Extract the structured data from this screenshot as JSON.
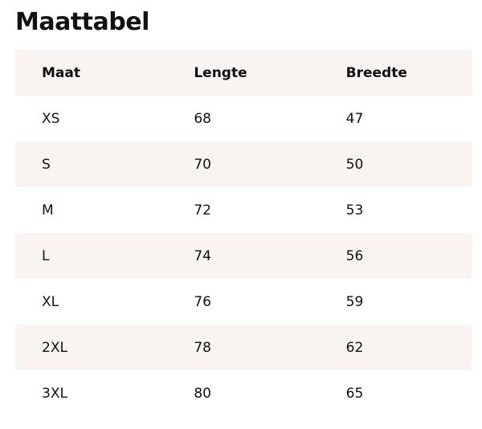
{
  "title": "Maattabel",
  "headers": [
    "Maat",
    "Lengte",
    "Breedte"
  ],
  "rows": [
    [
      "XS",
      "68",
      "47"
    ],
    [
      "S",
      "70",
      "50"
    ],
    [
      "M",
      "72",
      "53"
    ],
    [
      "L",
      "74",
      "56"
    ],
    [
      "XL",
      "76",
      "59"
    ],
    [
      "2XL",
      "78",
      "62"
    ],
    [
      "3XL",
      "80",
      "65"
    ]
  ],
  "colors": {
    "stripe": "#f9f3f2",
    "text": "#111111"
  }
}
